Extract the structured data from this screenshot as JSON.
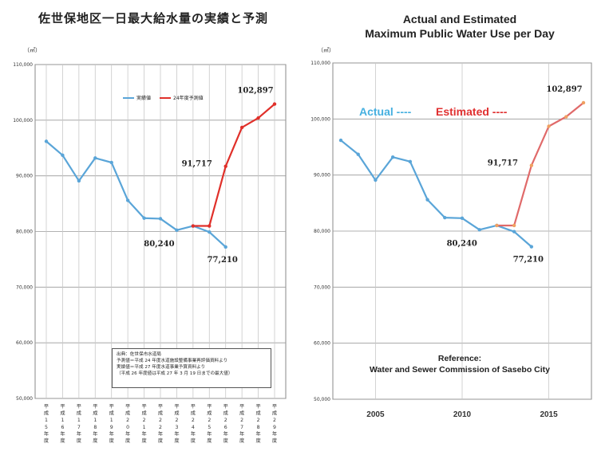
{
  "left": {
    "title": "佐世保地区一日最大給水量の実績と予測",
    "unit": "（㎥）",
    "legend_actual": "実績値",
    "legend_estimated": "24年度予測値",
    "reference_lines": [
      "出典：佐世保市水道局",
      "予測値＝平成 24 年度水道施設整備事業再評価資料より",
      "実績値＝平成 27 年度水道事業予算資料より",
      "（平成 26 年度値は平成 27 年 3 月 19 日までの最大値）"
    ]
  },
  "right": {
    "title_line1": "Actual and Estimated",
    "title_line2": "Maximum Public Water Use per Day",
    "unit": "（㎥）",
    "legend_actual": "Actual ----",
    "legend_estimated": "Estimated ----",
    "reference_line1": "Reference:",
    "reference_line2": "Water and Sewer  Commission of Sasebo City"
  },
  "colors": {
    "actual": "#5aa5d8",
    "estimated": "#e0302a",
    "estimated_right": "#e06a6a",
    "marker_est": "#f0a060",
    "grid": "#c8c8c8",
    "axis": "#666666"
  },
  "chart_data": [
    {
      "type": "line",
      "title": "佐世保地区一日最大給水量の実績と予測",
      "ylabel": "（㎥）",
      "ylim": [
        50000,
        110000
      ],
      "yticks": [
        50000,
        60000,
        70000,
        80000,
        90000,
        100000,
        110000
      ],
      "ytick_labels": [
        "50,000",
        "60,000",
        "70,000",
        "80,000",
        "90,000",
        "100,000",
        "110,000"
      ],
      "x": [
        2003,
        2004,
        2005,
        2006,
        2007,
        2008,
        2009,
        2010,
        2011,
        2012,
        2013,
        2014,
        2015,
        2016,
        2017
      ],
      "xtick_labels": [
        "平成15年度",
        "平成16年度",
        "平成17年度",
        "平成18年度",
        "平成19年度",
        "平成20年度",
        "平成21年度",
        "平成22年度",
        "平成23年度",
        "平成24年度",
        "平成25年度",
        "平成26年度",
        "平成27年度",
        "平成28年度",
        "平成29年度"
      ],
      "series": [
        {
          "name": "実績値",
          "x": [
            2003,
            2004,
            2005,
            2006,
            2007,
            2008,
            2009,
            2010,
            2011,
            2012,
            2013,
            2014
          ],
          "values": [
            96200,
            93700,
            89100,
            93200,
            92400,
            85600,
            82400,
            82300,
            80240,
            81000,
            79900,
            77210
          ]
        },
        {
          "name": "24年度予測値",
          "x": [
            2012,
            2013,
            2014,
            2015,
            2016,
            2017
          ],
          "values": [
            81000,
            81000,
            91717,
            98700,
            100400,
            102897
          ]
        }
      ],
      "annotations": [
        {
          "x": 2011,
          "y": 80240,
          "text": "80,240"
        },
        {
          "x": 2014,
          "y": 77210,
          "text": "77,210"
        },
        {
          "x": 2014,
          "y": 91717,
          "text": "91,717"
        },
        {
          "x": 2017,
          "y": 102897,
          "text": "102,897"
        }
      ]
    },
    {
      "type": "line",
      "title": "Actual and Estimated Maximum Public Water Use per Day",
      "ylabel": "（㎥）",
      "ylim": [
        50000,
        110000
      ],
      "yticks": [
        50000,
        60000,
        70000,
        80000,
        90000,
        100000,
        110000
      ],
      "ytick_labels": [
        "50,000",
        "60,000",
        "70,000",
        "80,000",
        "90,000",
        "100,000",
        "110,000"
      ],
      "x": [
        2003,
        2004,
        2005,
        2006,
        2007,
        2008,
        2009,
        2010,
        2011,
        2012,
        2013,
        2014,
        2015,
        2016,
        2017
      ],
      "xtick_values": [
        2005,
        2010,
        2015
      ],
      "xtick_labels": [
        "2005",
        "2010",
        "2015"
      ],
      "series": [
        {
          "name": "Actual",
          "x": [
            2003,
            2004,
            2005,
            2006,
            2007,
            2008,
            2009,
            2010,
            2011,
            2012,
            2013,
            2014
          ],
          "values": [
            96200,
            93700,
            89100,
            93200,
            92400,
            85600,
            82400,
            82300,
            80240,
            81000,
            79900,
            77210
          ]
        },
        {
          "name": "Estimated",
          "x": [
            2012,
            2013,
            2014,
            2015,
            2016,
            2017
          ],
          "values": [
            81000,
            81000,
            91717,
            98700,
            100400,
            102897
          ]
        }
      ],
      "annotations": [
        {
          "x": 2011,
          "y": 80240,
          "text": "80,240"
        },
        {
          "x": 2014,
          "y": 77210,
          "text": "77,210"
        },
        {
          "x": 2014,
          "y": 91717,
          "text": "91,717"
        },
        {
          "x": 2017,
          "y": 102897,
          "text": "102,897"
        }
      ]
    }
  ]
}
